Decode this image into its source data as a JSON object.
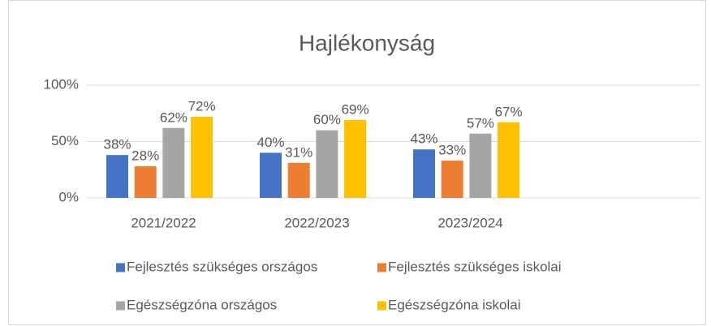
{
  "chart_data": {
    "type": "bar",
    "title": "Hajlékonyság",
    "categories": [
      "2021/2022",
      "2022/2023",
      "2023/2024",
      null
    ],
    "series": [
      {
        "name": "Fejlesztés szükséges országos",
        "color": "#4472c4",
        "values": [
          38,
          40,
          43,
          null
        ],
        "value_labels": [
          "38%",
          "40%",
          "43%",
          null
        ]
      },
      {
        "name": "Fejlesztés szükséges iskolai",
        "color": "#ed7d31",
        "values": [
          28,
          31,
          33,
          null
        ],
        "value_labels": [
          "28%",
          "31%",
          "33%",
          null
        ]
      },
      {
        "name": "Egészségzóna országos",
        "color": "#a5a5a5",
        "values": [
          62,
          60,
          57,
          null
        ],
        "value_labels": [
          "62%",
          "60%",
          "57%",
          null
        ]
      },
      {
        "name": "Egészségzóna iskolai",
        "color": "#ffc000",
        "values": [
          72,
          69,
          67,
          null
        ],
        "value_labels": [
          "72%",
          "69%",
          "67%",
          null
        ]
      }
    ],
    "ylim": [
      0,
      100
    ],
    "yticks": [
      {
        "value": 0,
        "label": "0%"
      },
      {
        "value": 50,
        "label": "50%"
      },
      {
        "value": 100,
        "label": "100%"
      }
    ],
    "grid": true,
    "legend": "bottom"
  }
}
